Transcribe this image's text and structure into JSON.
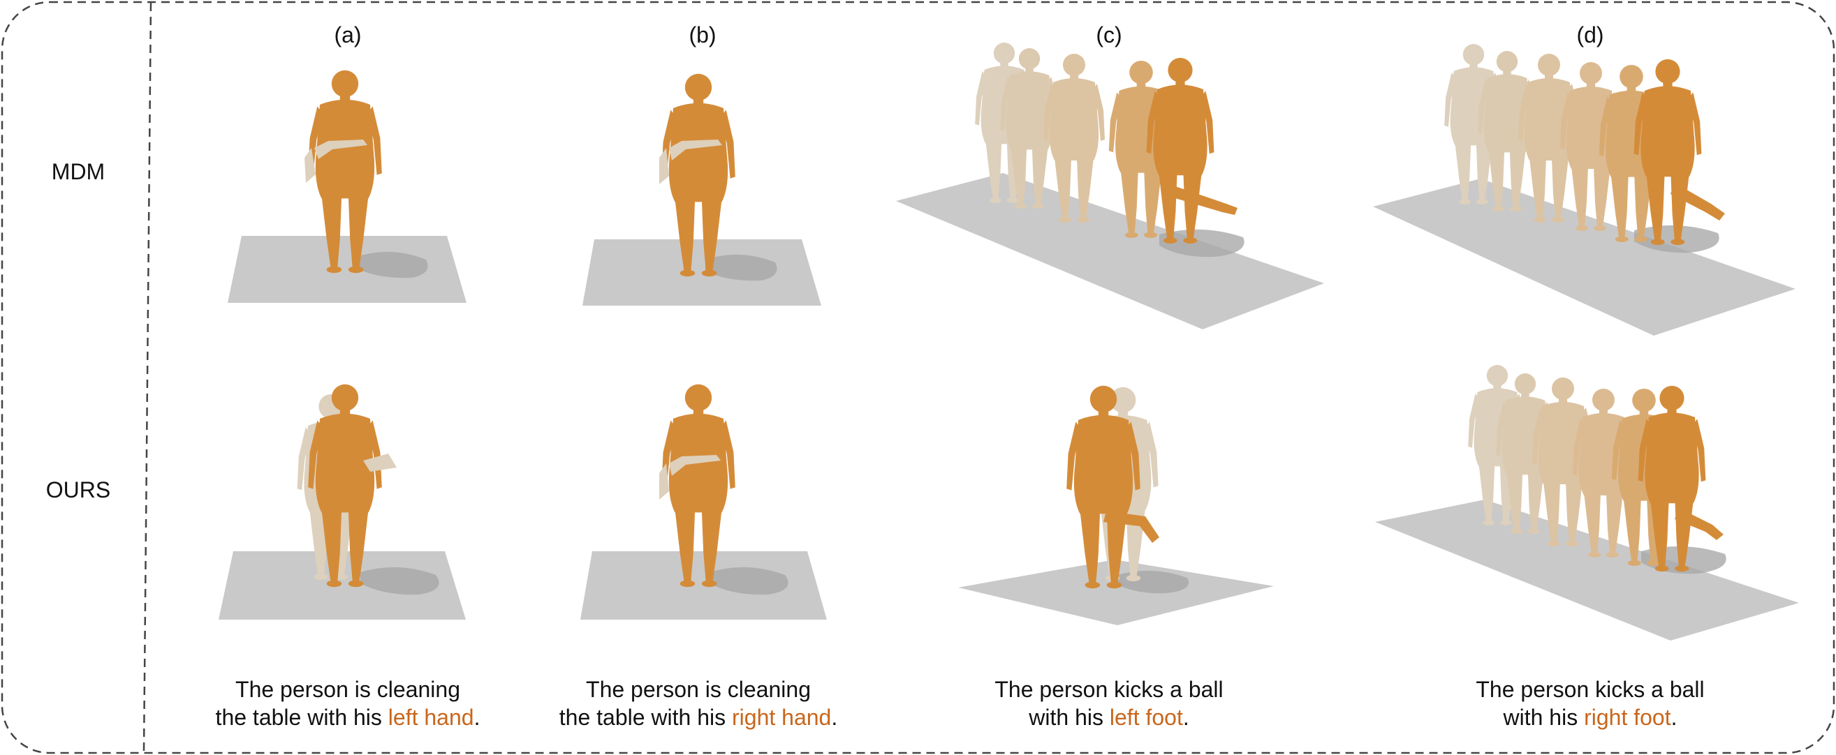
{
  "columns": [
    {
      "label": "(a)"
    },
    {
      "label": "(b)"
    },
    {
      "label": "(c)"
    },
    {
      "label": "(d)"
    }
  ],
  "rows": [
    {
      "label": "MDM"
    },
    {
      "label": "OURS"
    }
  ],
  "captions": [
    {
      "line1": "The person is cleaning",
      "line2_prefix": "the table with his ",
      "highlight": "left hand",
      "suffix": "."
    },
    {
      "line1": "The person is cleaning",
      "line2_prefix": "the table with his ",
      "highlight": "right hand",
      "suffix": "."
    },
    {
      "line1": "The person kicks a ball",
      "line2_prefix": "with his ",
      "highlight": "left foot",
      "suffix": "."
    },
    {
      "line1": "The person kicks a ball",
      "line2_prefix": "with his ",
      "highlight": "right foot",
      "suffix": "."
    }
  ],
  "colors": {
    "highlight": "#c8661c",
    "figure_body": "#d48b38",
    "ghost_body": "#ddd0bc",
    "floor": "#c9c9c9",
    "shadow": "#a9a9a9",
    "border": "#444444"
  }
}
